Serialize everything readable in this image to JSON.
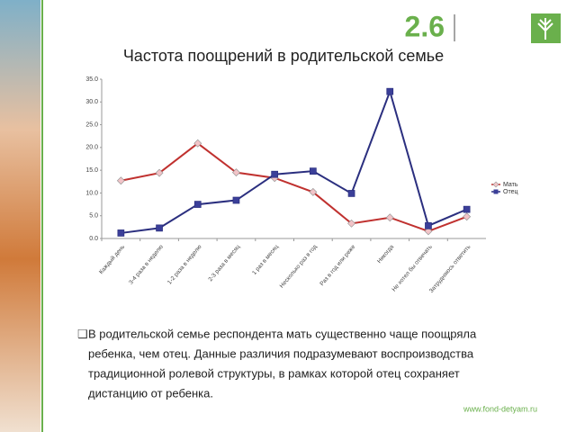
{
  "slide_number": "2.6",
  "bullet_lines": [
    "В родительской семье респондента мать существенно чаще поощряла",
    "ребенка, чем отец. Данные различия подразумевают воспроизводства",
    "традиционной ролевой структуры, в рамках которой отец сохраняет",
    "дистанцию от ребенка."
  ],
  "url": "www.fond-detyam.ru",
  "chart_data": {
    "type": "line",
    "title": "Частота поощрений в родительской семье",
    "categories": [
      "Каждый день",
      "3-4 раза в неделю",
      "1-2 раза в неделю",
      "2-3 раза в месяц",
      "1 раз в месяц",
      "Несколько раз в год",
      "Раз в год или реже",
      "Никогда",
      "Не хотел бы отвечать",
      "Затрудняюсь ответить"
    ],
    "series": [
      {
        "name": "Мать",
        "color": "#c0312f",
        "marker_color": "#f2c4c8",
        "values": [
          12.7,
          14.4,
          20.9,
          14.5,
          13.3,
          10.2,
          3.3,
          4.6,
          1.6,
          4.8
        ]
      },
      {
        "name": "Отец",
        "color": "#2b2f7f",
        "marker_color": "#3b3f99",
        "values": [
          1.2,
          2.3,
          7.5,
          8.4,
          14.1,
          14.8,
          9.9,
          32.3,
          2.8,
          6.4
        ]
      }
    ],
    "ylim": [
      0,
      35
    ],
    "yticks": [
      {
        "value": 0,
        "label": "0.0"
      },
      {
        "value": 5,
        "label": "5.0"
      },
      {
        "value": 10,
        "label": "10.0"
      },
      {
        "value": 15,
        "label": "15.0"
      },
      {
        "value": 20,
        "label": "20.0"
      },
      {
        "value": 25,
        "label": "25.0"
      },
      {
        "value": 30,
        "label": "30.0"
      },
      {
        "value": 35,
        "label": "35.0"
      }
    ],
    "legend": "right"
  }
}
